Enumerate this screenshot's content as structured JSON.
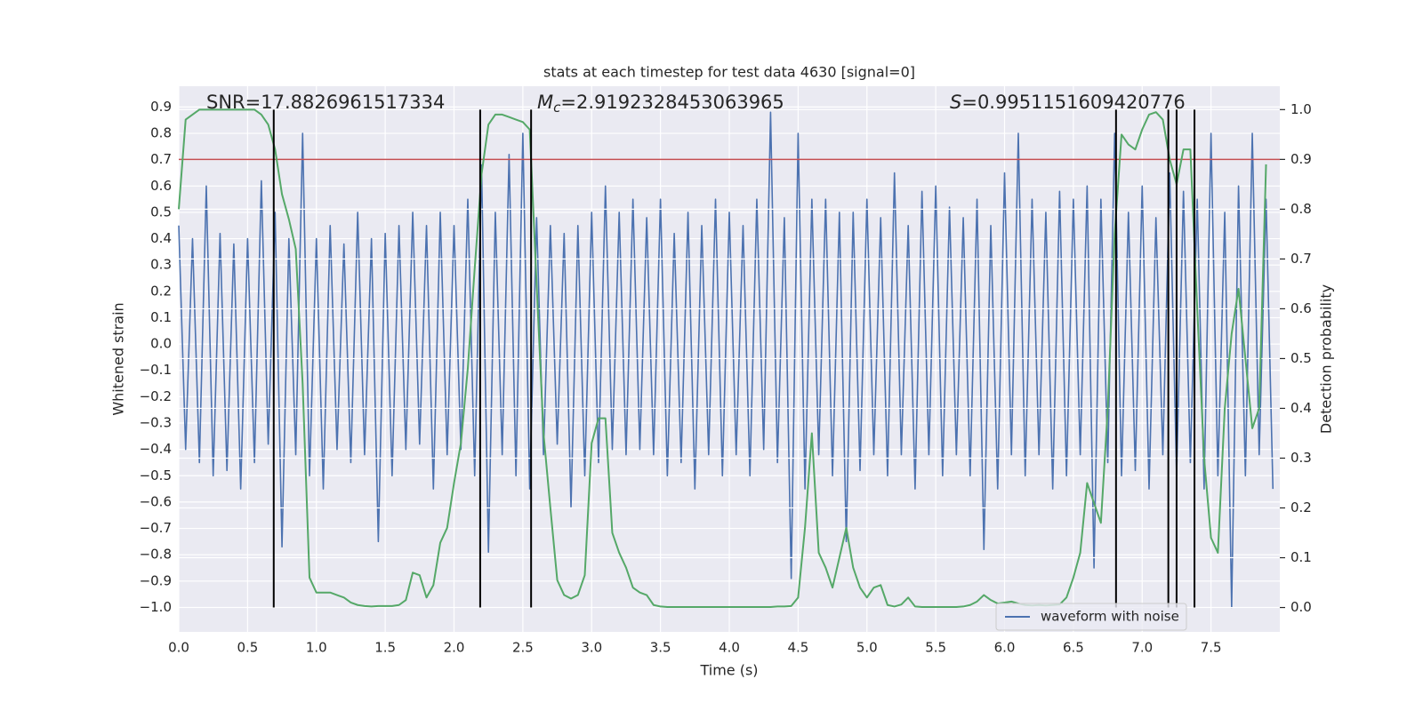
{
  "chart_data": {
    "type": "line",
    "title": "stats at each timestep for test data 4630 [signal=0]",
    "x_label": "Time (s)",
    "y_label": "Whitened strain",
    "y2_label": "Detection probability",
    "grid": true,
    "legend": "lower right",
    "xlim": [
      0,
      8
    ],
    "ylim": [
      -1.093,
      0.979
    ],
    "y2lim": [
      -0.049,
      1.047
    ],
    "xticks": [
      {
        "value": 0,
        "label": "0.0"
      },
      0.5,
      {
        "value": 1,
        "label": "1.0"
      },
      1.5,
      {
        "value": 2,
        "label": "2.0"
      },
      2.5,
      {
        "value": 3,
        "label": "3.0"
      },
      3.5,
      {
        "value": 4,
        "label": "4.0"
      },
      4.5,
      {
        "value": 5,
        "label": "5.0"
      },
      5.5,
      {
        "value": 6,
        "label": "6.0"
      },
      6.5,
      {
        "value": 7,
        "label": "7.0"
      },
      7.5
    ],
    "yticks": [
      {
        "value": -1.0,
        "label": "−1.0"
      },
      {
        "value": -0.9,
        "label": "−0.9"
      },
      {
        "value": -0.8,
        "label": "−0.8"
      },
      {
        "value": -0.7,
        "label": "−0.7"
      },
      {
        "value": -0.6,
        "label": "−0.6"
      },
      {
        "value": -0.5,
        "label": "−0.5"
      },
      {
        "value": -0.4,
        "label": "−0.4"
      },
      {
        "value": -0.3,
        "label": "−0.3"
      },
      {
        "value": -0.2,
        "label": "−0.2"
      },
      {
        "value": -0.1,
        "label": "−0.1"
      },
      {
        "value": 0,
        "label": "0.0"
      },
      0.1,
      0.2,
      0.3,
      0.4,
      0.5,
      0.6,
      0.7,
      0.8,
      0.9
    ],
    "y2ticks": [
      {
        "value": 0,
        "label": "0.0"
      },
      0.1,
      0.2,
      0.3,
      0.4,
      0.5,
      0.6,
      0.7,
      0.8,
      0.9,
      {
        "value": 1,
        "label": "1.0"
      }
    ],
    "x": [
      0,
      0.05,
      0.1,
      0.15,
      0.2,
      0.25,
      0.3,
      0.35,
      0.4,
      0.45,
      0.5,
      0.55,
      0.6,
      0.65,
      0.7,
      0.75,
      0.8,
      0.85,
      0.9,
      0.95,
      1.0,
      1.05,
      1.1,
      1.15,
      1.2,
      1.25,
      1.3,
      1.35,
      1.4,
      1.45,
      1.5,
      1.55,
      1.6,
      1.65,
      1.7,
      1.75,
      1.8,
      1.85,
      1.9,
      1.95,
      2.0,
      2.05,
      2.1,
      2.15,
      2.2,
      2.25,
      2.3,
      2.35,
      2.4,
      2.45,
      2.5,
      2.55,
      2.6,
      2.65,
      2.7,
      2.75,
      2.8,
      2.85,
      2.9,
      2.95,
      3.0,
      3.05,
      3.1,
      3.15,
      3.2,
      3.25,
      3.3,
      3.35,
      3.4,
      3.45,
      3.5,
      3.55,
      3.6,
      3.65,
      3.7,
      3.75,
      3.8,
      3.85,
      3.9,
      3.95,
      4.0,
      4.05,
      4.1,
      4.15,
      4.2,
      4.25,
      4.3,
      4.35,
      4.4,
      4.45,
      4.5,
      4.55,
      4.6,
      4.65,
      4.7,
      4.75,
      4.8,
      4.85,
      4.9,
      4.95,
      5.0,
      5.05,
      5.1,
      5.15,
      5.2,
      5.25,
      5.3,
      5.35,
      5.4,
      5.45,
      5.5,
      5.55,
      5.6,
      5.65,
      5.7,
      5.75,
      5.8,
      5.85,
      5.9,
      5.95,
      6.0,
      6.05,
      6.1,
      6.15,
      6.2,
      6.25,
      6.3,
      6.35,
      6.4,
      6.45,
      6.5,
      6.55,
      6.6,
      6.65,
      6.7,
      6.75,
      6.8,
      6.85,
      6.9,
      6.95,
      7.0,
      7.05,
      7.1,
      7.15,
      7.2,
      7.25,
      7.3,
      7.35,
      7.4,
      7.45,
      7.5,
      7.55,
      7.6,
      7.65,
      7.7,
      7.75,
      7.8,
      7.85,
      7.9,
      7.95
    ],
    "series": [
      {
        "name": "waveform with noise",
        "color": "#4c72b0",
        "values": [
          0.45,
          -0.4,
          0.4,
          -0.45,
          0.6,
          -0.5,
          0.42,
          -0.48,
          0.38,
          -0.55,
          0.4,
          -0.45,
          0.62,
          -0.38,
          0.5,
          -0.77,
          0.4,
          -0.42,
          0.8,
          -0.5,
          0.4,
          -0.55,
          0.45,
          -0.4,
          0.38,
          -0.45,
          0.5,
          -0.42,
          0.4,
          -0.75,
          0.42,
          -0.5,
          0.45,
          -0.4,
          0.5,
          -0.38,
          0.45,
          -0.55,
          0.5,
          -0.42,
          0.45,
          -0.4,
          0.55,
          -0.5,
          0.68,
          -0.79,
          0.5,
          -0.42,
          0.72,
          -0.5,
          0.8,
          -0.55,
          0.48,
          -0.42,
          0.45,
          -0.38,
          0.42,
          -0.62,
          0.45,
          -0.5,
          0.5,
          -0.45,
          0.6,
          -0.4,
          0.5,
          -0.42,
          0.55,
          -0.4,
          0.48,
          -0.42,
          0.55,
          -0.5,
          0.42,
          -0.45,
          0.5,
          -0.55,
          0.45,
          -0.42,
          0.55,
          -0.5,
          0.5,
          -0.42,
          0.45,
          -0.5,
          0.55,
          -0.4,
          0.88,
          -0.45,
          0.48,
          -0.89,
          0.8,
          -0.55,
          0.55,
          -0.42,
          0.55,
          -0.5,
          0.5,
          -0.75,
          0.5,
          -0.48,
          0.55,
          -0.42,
          0.48,
          -0.5,
          0.65,
          -0.42,
          0.45,
          -0.55,
          0.58,
          -0.42,
          0.6,
          -0.5,
          0.52,
          -0.42,
          0.48,
          -0.5,
          0.55,
          -0.78,
          0.45,
          -0.55,
          0.65,
          -0.42,
          0.8,
          -0.5,
          0.55,
          -0.42,
          0.5,
          -0.55,
          0.58,
          -0.5,
          0.55,
          -0.42,
          0.6,
          -0.85,
          0.55,
          -0.45,
          0.8,
          -0.5,
          0.5,
          -0.48,
          0.6,
          -0.55,
          0.48,
          -0.42,
          0.65,
          -0.5,
          0.58,
          -0.45,
          0.55,
          -0.55,
          0.8,
          -0.5,
          0.5,
          -1.0,
          0.6,
          -0.5,
          0.8,
          -0.42,
          0.55,
          -0.55
        ]
      },
      {
        "color": "#55a868",
        "axis": "y2",
        "values": [
          0.8,
          0.98,
          0.99,
          1.0,
          1.0,
          1.0,
          1.0,
          1.0,
          1.0,
          1.0,
          1.0,
          1.0,
          0.99,
          0.97,
          0.92,
          0.83,
          0.78,
          0.72,
          0.45,
          0.06,
          0.03,
          0.03,
          0.03,
          0.025,
          0.02,
          0.01,
          0.005,
          0.003,
          0.002,
          0.003,
          0.003,
          0.003,
          0.005,
          0.015,
          0.07,
          0.065,
          0.02,
          0.045,
          0.13,
          0.16,
          0.25,
          0.33,
          0.48,
          0.68,
          0.87,
          0.97,
          0.99,
          0.99,
          0.985,
          0.98,
          0.975,
          0.96,
          0.65,
          0.35,
          0.2,
          0.055,
          0.025,
          0.018,
          0.025,
          0.065,
          0.33,
          0.38,
          0.38,
          0.15,
          0.11,
          0.08,
          0.04,
          0.03,
          0.025,
          0.005,
          0.002,
          0.001,
          0.001,
          0.001,
          0.001,
          0.001,
          0.001,
          0.001,
          0.001,
          0.001,
          0.001,
          0.001,
          0.001,
          0.001,
          0.001,
          0.001,
          0.001,
          0.002,
          0.002,
          0.003,
          0.02,
          0.16,
          0.35,
          0.11,
          0.08,
          0.04,
          0.1,
          0.16,
          0.08,
          0.04,
          0.02,
          0.04,
          0.045,
          0.005,
          0.002,
          0.006,
          0.02,
          0.002,
          0.001,
          0.001,
          0.001,
          0.001,
          0.001,
          0.001,
          0.002,
          0.005,
          0.012,
          0.025,
          0.015,
          0.008,
          0.01,
          0.012,
          0.008,
          0.005,
          0.004,
          0.005,
          0.004,
          0.005,
          0.006,
          0.02,
          0.06,
          0.11,
          0.25,
          0.21,
          0.17,
          0.4,
          0.75,
          0.95,
          0.93,
          0.92,
          0.96,
          0.99,
          0.995,
          0.98,
          0.9,
          0.85,
          0.92,
          0.92,
          0.6,
          0.3,
          0.14,
          0.11,
          0.4,
          0.55,
          0.64,
          0.5,
          0.36,
          0.4,
          0.89,
          null
        ]
      }
    ],
    "threshold": {
      "value": 0.9,
      "axis": "y2",
      "color": "#c44e52"
    },
    "vlines": {
      "x": [
        0.69,
        2.19,
        2.56,
        6.81,
        7.19,
        7.25,
        7.38
      ],
      "y2_range": [
        0,
        1
      ],
      "color": "#000000"
    },
    "annotations": [
      {
        "text": "SNR=17.8826961517334"
      },
      {
        "symbol": "M",
        "subscript": "c",
        "text": "=2.9192328453063965"
      },
      {
        "symbol": "S",
        "text": "=0.9951151609420776"
      }
    ]
  }
}
